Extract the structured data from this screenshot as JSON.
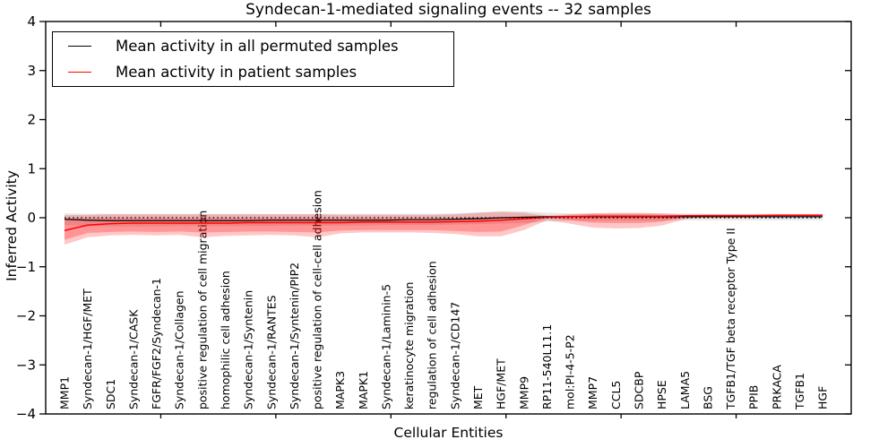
{
  "legend": [
    {
      "label": "Mean activity in all permuted samples",
      "color": "#000000"
    },
    {
      "label": "Mean activity in patient samples",
      "color": "#ff0000"
    }
  ],
  "chart_data": {
    "type": "line",
    "title": "Syndecan-1-mediated signaling events -- 32 samples",
    "xlabel": "Cellular Entities",
    "ylabel": "Inferred Activity",
    "ylim": [
      -4,
      4
    ],
    "yticks": [
      -4,
      -3,
      -2,
      -1,
      0,
      1,
      2,
      3,
      4
    ],
    "xlim": [
      0,
      35
    ],
    "x_major_ticks": [
      5,
      10,
      15,
      20,
      25,
      30
    ],
    "grid": false,
    "legend_position": "upper left",
    "zero_line": {
      "style": "dotted",
      "color": "#000000",
      "y": 0
    },
    "categories": [
      "MMP1",
      "Syndecan-1/HGF/MET",
      "SDC1",
      "Syndecan-1/CASK",
      "FGFR/FGF2/Syndecan-1",
      "Syndecan-1/Collagen",
      "positive regulation of cell migration",
      "homophilic cell adhesion",
      "Syndecan-1/Syntenin",
      "Syndecan-1/RANTES",
      "Syndecan-1/Syntenin/PIP2",
      "positive regulation of cell-cell adhesion",
      "MAPK3",
      "MAPK1",
      "Syndecan-1/Laminin-5",
      "keratinocyte migration",
      "regulation of cell adhesion",
      "Syndecan-1/CD147",
      "MET",
      "HGF/MET",
      "MMP9",
      "RP11-540L11.1",
      "mol:PI-4-5-P2",
      "MMP7",
      "CCL5",
      "SDCBP",
      "HPSE",
      "LAMA5",
      "BSG",
      "TGFB1/TGF beta receptor Type II",
      "PPIB",
      "PRKACA",
      "TGFB1",
      "HGF"
    ],
    "series": [
      {
        "name": "Mean activity in all permuted samples",
        "color": "#000000",
        "width": 1.2,
        "values": [
          -0.03,
          -0.05,
          -0.06,
          -0.06,
          -0.06,
          -0.06,
          -0.06,
          -0.06,
          -0.06,
          -0.05,
          -0.05,
          -0.05,
          -0.05,
          -0.05,
          -0.05,
          -0.04,
          -0.04,
          -0.03,
          -0.02,
          0.0,
          0.01,
          0.02,
          0.02,
          0.02,
          0.02,
          0.02,
          0.02,
          0.02,
          0.02,
          0.02,
          0.02,
          0.02,
          0.02,
          0.02
        ]
      },
      {
        "name": "Mean activity in patient samples",
        "color": "#ff0000",
        "width": 1.5,
        "values": [
          -0.26,
          -0.15,
          -0.12,
          -0.11,
          -0.11,
          -0.11,
          -0.11,
          -0.11,
          -0.1,
          -0.1,
          -0.1,
          -0.1,
          -0.1,
          -0.09,
          -0.09,
          -0.09,
          -0.09,
          -0.08,
          -0.07,
          -0.05,
          -0.02,
          0.01,
          0.02,
          0.03,
          0.03,
          0.03,
          0.03,
          0.04,
          0.04,
          0.04,
          0.04,
          0.05,
          0.05,
          0.05
        ]
      }
    ],
    "bands": [
      {
        "name": "permuted-activity-range",
        "color": "rgba(0,0,0,0.10)",
        "upper": [
          0.09,
          0.08,
          0.08,
          0.08,
          0.08,
          0.08,
          0.08,
          0.08,
          0.08,
          0.08,
          0.08,
          0.08,
          0.08,
          0.08,
          0.08,
          0.08,
          0.08,
          0.09,
          0.11,
          0.13,
          0.13,
          0.1,
          0.09,
          0.09,
          0.09,
          0.09,
          0.09,
          0.09,
          0.08,
          0.08,
          0.08,
          0.08,
          0.08,
          0.08
        ],
        "lower": [
          -0.15,
          -0.17,
          -0.18,
          -0.18,
          -0.18,
          -0.17,
          -0.17,
          -0.17,
          -0.17,
          -0.17,
          -0.16,
          -0.16,
          -0.16,
          -0.16,
          -0.15,
          -0.15,
          -0.15,
          -0.14,
          -0.13,
          -0.12,
          -0.11,
          -0.08,
          -0.06,
          -0.06,
          -0.06,
          -0.06,
          -0.06,
          -0.05,
          -0.05,
          -0.05,
          -0.05,
          -0.05,
          -0.05,
          -0.05
        ]
      },
      {
        "name": "patient-activity-range-outer",
        "color": "rgba(255,0,0,0.22)",
        "upper": [
          0.05,
          0.06,
          0.07,
          0.07,
          0.07,
          0.07,
          0.07,
          0.07,
          0.07,
          0.07,
          0.07,
          0.07,
          0.06,
          0.06,
          0.06,
          0.06,
          0.06,
          0.07,
          0.1,
          0.12,
          0.1,
          0.04,
          0.07,
          0.09,
          0.1,
          0.1,
          0.09,
          0.06,
          0.07,
          0.07,
          0.07,
          0.07,
          0.07,
          0.07
        ],
        "lower": [
          -0.55,
          -0.4,
          -0.36,
          -0.35,
          -0.36,
          -0.35,
          -0.4,
          -0.37,
          -0.36,
          -0.35,
          -0.36,
          -0.4,
          -0.32,
          -0.3,
          -0.3,
          -0.3,
          -0.31,
          -0.33,
          -0.38,
          -0.38,
          -0.25,
          -0.05,
          -0.12,
          -0.2,
          -0.22,
          -0.21,
          -0.16,
          -0.03,
          0.02,
          0.02,
          0.02,
          0.02,
          0.02,
          0.02
        ]
      },
      {
        "name": "patient-activity-range-inner",
        "color": "rgba(255,0,0,0.25)",
        "upper": [
          -0.02,
          -0.01,
          -0.01,
          -0.01,
          -0.01,
          -0.01,
          -0.01,
          -0.01,
          -0.01,
          -0.01,
          -0.01,
          -0.01,
          -0.01,
          -0.01,
          -0.01,
          -0.01,
          -0.01,
          -0.01,
          0.0,
          0.01,
          0.03,
          0.02,
          0.05,
          0.07,
          0.07,
          0.07,
          0.06,
          0.05,
          0.06,
          0.06,
          0.06,
          0.06,
          0.06,
          0.06
        ],
        "lower": [
          -0.45,
          -0.31,
          -0.29,
          -0.28,
          -0.29,
          -0.28,
          -0.3,
          -0.29,
          -0.28,
          -0.28,
          -0.29,
          -0.3,
          -0.26,
          -0.25,
          -0.25,
          -0.25,
          -0.25,
          -0.27,
          -0.29,
          -0.28,
          -0.15,
          -0.01,
          -0.05,
          -0.1,
          -0.11,
          -0.11,
          -0.08,
          0.01,
          0.03,
          0.03,
          0.03,
          0.03,
          0.03,
          0.03
        ]
      }
    ]
  }
}
